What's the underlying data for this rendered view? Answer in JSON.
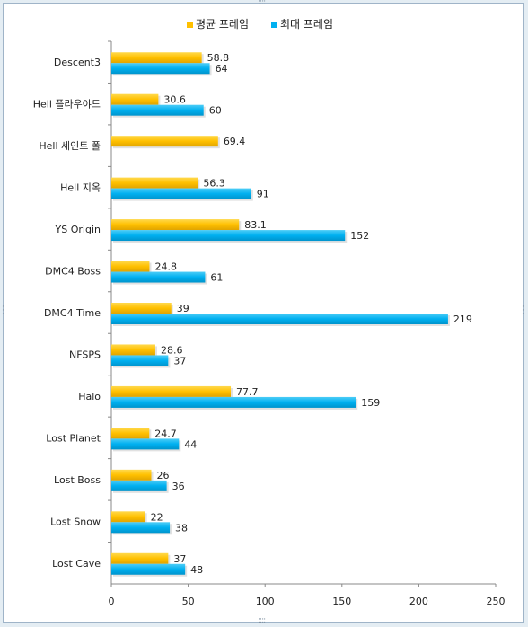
{
  "chart_data": {
    "type": "bar",
    "orientation": "horizontal",
    "categories": [
      "Descent3",
      "Hell 플라우야드",
      "Hell 세인트 폴",
      "Hell 지옥",
      "YS Origin",
      "DMC4 Boss",
      "DMC4 Time",
      "NFSPS",
      "Halo",
      "Lost Planet",
      "Lost Boss",
      "Lost Snow",
      "Lost Cave"
    ],
    "series": [
      {
        "name": "평균 프레임",
        "color": "#ffc000",
        "values": [
          58.8,
          30.6,
          69.4,
          56.3,
          83.1,
          24.8,
          39,
          28.6,
          77.7,
          24.7,
          26,
          22,
          37
        ]
      },
      {
        "name": "최대 프레임",
        "color": "#00b0f0",
        "values": [
          64,
          60,
          null,
          91,
          152,
          61,
          219,
          37,
          159,
          44,
          36,
          38,
          48
        ]
      }
    ],
    "xlim": [
      0,
      250
    ],
    "xticks": [
      0,
      50,
      100,
      150,
      200,
      250
    ],
    "legend": "top",
    "grid": false,
    "title": "",
    "xlabel": "",
    "ylabel": ""
  }
}
